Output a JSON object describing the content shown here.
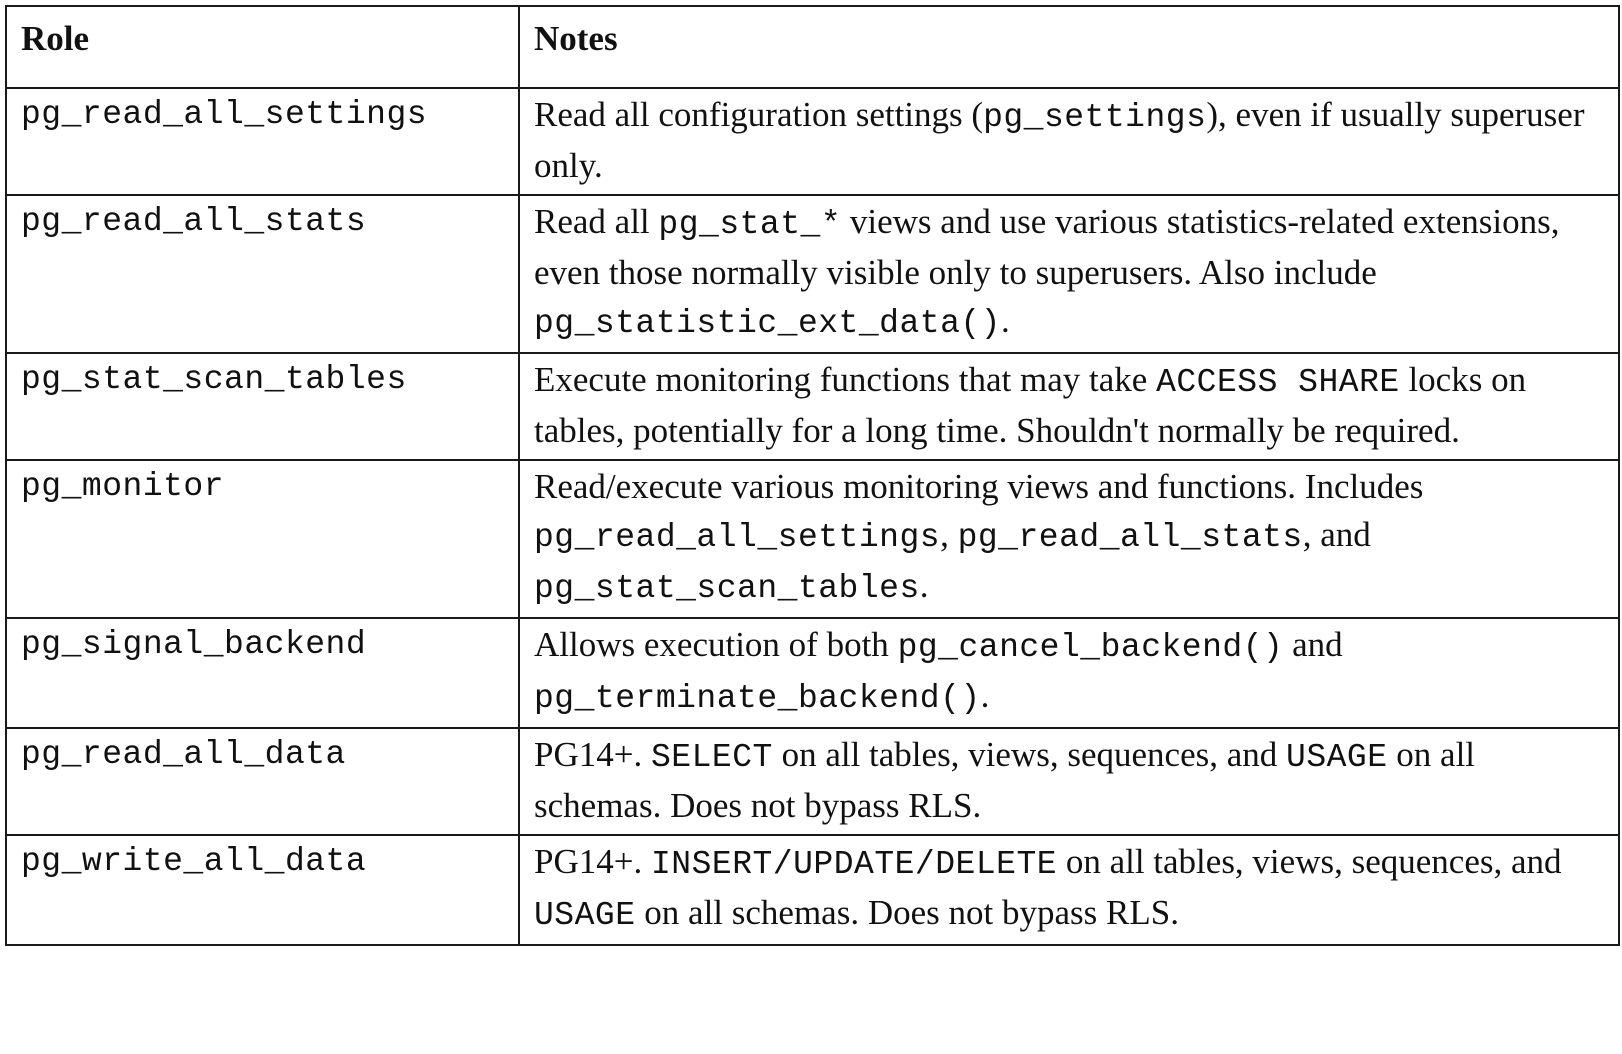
{
  "header": {
    "role": "Role",
    "notes": "Notes"
  },
  "rows": [
    {
      "role": "pg_read_all_settings",
      "notes": [
        {
          "t": "Read all configuration settings ("
        },
        {
          "t": "pg_settings",
          "code": true
        },
        {
          "t": "), even if usually superuser only."
        }
      ]
    },
    {
      "role": "pg_read_all_stats",
      "notes": [
        {
          "t": "Read all "
        },
        {
          "t": "pg_stat_*",
          "code": true
        },
        {
          "t": " views and use various statistics-related extensions, even those normally visible only to superusers. Also include "
        },
        {
          "t": "pg_statistic_ext_data()",
          "code": true
        },
        {
          "t": "."
        }
      ]
    },
    {
      "role": "pg_stat_scan_tables",
      "notes": [
        {
          "t": "Execute monitoring functions that may take "
        },
        {
          "t": "ACCESS SHARE",
          "code": true
        },
        {
          "t": " locks on tables, potentially for a long time. Shouldn't normally be required."
        }
      ]
    },
    {
      "role": "pg_monitor",
      "notes": [
        {
          "t": "Read/execute various monitoring views and functions. Includes "
        },
        {
          "t": "pg_read_all_settings",
          "code": true
        },
        {
          "t": ", "
        },
        {
          "t": "pg_read_all_stats",
          "code": true
        },
        {
          "t": ", and "
        },
        {
          "t": "pg_stat_scan_tables",
          "code": true
        },
        {
          "t": "."
        }
      ]
    },
    {
      "role": "pg_signal_backend",
      "notes": [
        {
          "t": "Allows execution of both "
        },
        {
          "t": "pg_cancel_backend()",
          "code": true
        },
        {
          "t": " and "
        },
        {
          "t": "pg_terminate_backend()",
          "code": true
        },
        {
          "t": "."
        }
      ]
    },
    {
      "role": "pg_read_all_data",
      "notes": [
        {
          "t": "PG14+. "
        },
        {
          "t": "SELECT",
          "code": true
        },
        {
          "t": " on all tables, views, sequences, and "
        },
        {
          "t": "USAGE",
          "code": true
        },
        {
          "t": " on all schemas. Does not bypass RLS."
        }
      ]
    },
    {
      "role": "pg_write_all_data",
      "notes": [
        {
          "t": "PG14+. "
        },
        {
          "t": "INSERT/UPDATE/DELETE",
          "code": true
        },
        {
          "t": " on all tables, views, sequences, and "
        },
        {
          "t": "USAGE",
          "code": true
        },
        {
          "t": " on all schemas. Does not bypass RLS."
        }
      ]
    }
  ]
}
